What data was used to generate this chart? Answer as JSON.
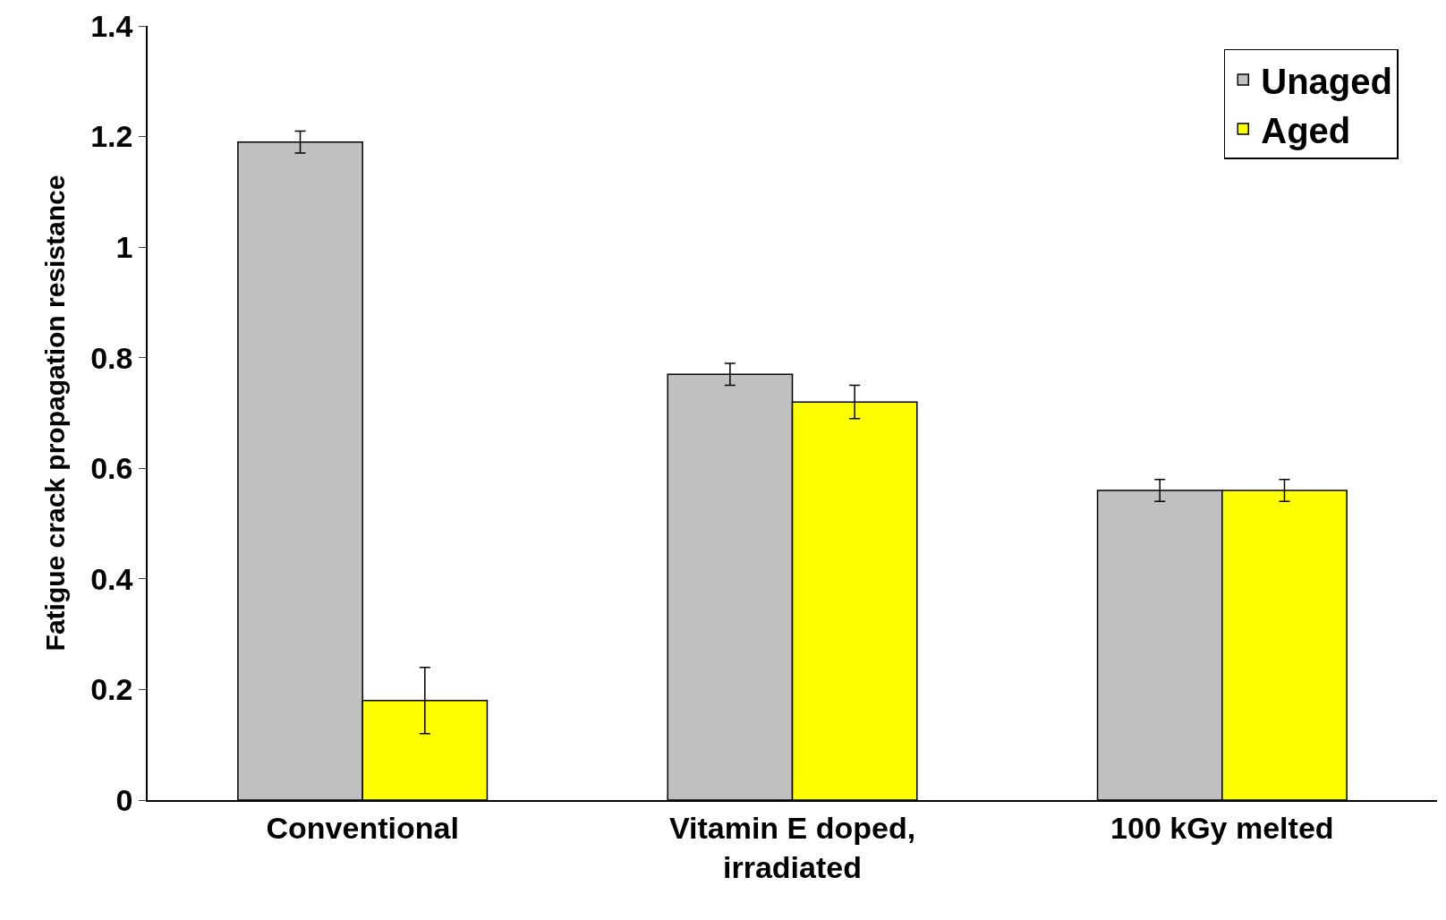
{
  "chart_data": {
    "type": "bar",
    "ylabel": "Fatigue crack propagation resistance",
    "categories": [
      "Conventional",
      "Vitamin E doped,\nirradiated",
      "100 kGy melted"
    ],
    "series": [
      {
        "name": "Unaged",
        "color": "#c0c0c0",
        "values": [
          1.19,
          0.77,
          0.56
        ],
        "errors": [
          0.02,
          0.02,
          0.02
        ]
      },
      {
        "name": "Aged",
        "color": "#ffff00",
        "values": [
          0.18,
          0.72,
          0.56
        ],
        "errors": [
          0.06,
          0.03,
          0.02
        ]
      }
    ],
    "ylim": [
      0,
      1.4
    ],
    "yticks": [
      0,
      0.2,
      0.4,
      0.6,
      0.8,
      1,
      1.2,
      1.4
    ],
    "grid": false,
    "legend": "top right"
  }
}
